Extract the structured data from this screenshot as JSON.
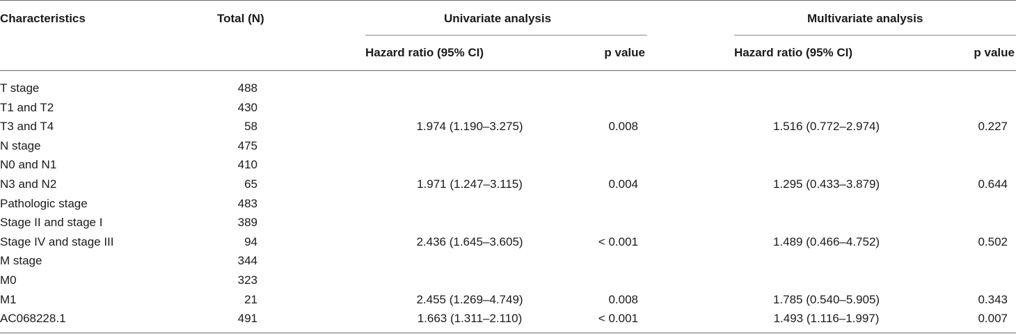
{
  "table": {
    "headers": {
      "characteristics": "Characteristics",
      "total": "Total (N)",
      "univariate": "Univariate analysis",
      "multivariate": "Multivariate analysis",
      "uni_hr": "Hazard ratio (95% CI)",
      "uni_p": "p value",
      "multi_hr": "Hazard ratio (95% CI)",
      "multi_p": "p value"
    },
    "rows": [
      {
        "characteristic": "T stage",
        "total": "488",
        "uni_hr": "",
        "uni_p": "",
        "multi_hr": "",
        "multi_p": ""
      },
      {
        "characteristic": "T1 and T2",
        "total": "430",
        "uni_hr": "",
        "uni_p": "",
        "multi_hr": "",
        "multi_p": ""
      },
      {
        "characteristic": "T3 and T4",
        "total": "58",
        "uni_hr": "1.974 (1.190–3.275)",
        "uni_p": "0.008",
        "multi_hr": "1.516 (0.772–2.974)",
        "multi_p": "0.227"
      },
      {
        "characteristic": "N stage",
        "total": "475",
        "uni_hr": "",
        "uni_p": "",
        "multi_hr": "",
        "multi_p": ""
      },
      {
        "characteristic": "N0 and N1",
        "total": "410",
        "uni_hr": "",
        "uni_p": "",
        "multi_hr": "",
        "multi_p": ""
      },
      {
        "characteristic": "N3 and N2",
        "total": "65",
        "uni_hr": "1.971 (1.247–3.115)",
        "uni_p": "0.004",
        "multi_hr": "1.295 (0.433–3.879)",
        "multi_p": "0.644"
      },
      {
        "characteristic": "Pathologic stage",
        "total": "483",
        "uni_hr": "",
        "uni_p": "",
        "multi_hr": "",
        "multi_p": ""
      },
      {
        "characteristic": "Stage II and stage I",
        "total": "389",
        "uni_hr": "",
        "uni_p": "",
        "multi_hr": "",
        "multi_p": ""
      },
      {
        "characteristic": "Stage IV and stage III",
        "total": "94",
        "uni_hr": "2.436 (1.645–3.605)",
        "uni_p": "< 0.001",
        "multi_hr": "1.489 (0.466–4.752)",
        "multi_p": "0.502"
      },
      {
        "characteristic": "M stage",
        "total": "344",
        "uni_hr": "",
        "uni_p": "",
        "multi_hr": "",
        "multi_p": ""
      },
      {
        "characteristic": "M0",
        "total": "323",
        "uni_hr": "",
        "uni_p": "",
        "multi_hr": "",
        "multi_p": ""
      },
      {
        "characteristic": "M1",
        "total": "21",
        "uni_hr": "2.455 (1.269–4.749)",
        "uni_p": "0.008",
        "multi_hr": "1.785 (0.540–5.905)",
        "multi_p": "0.343"
      },
      {
        "characteristic": "AC068228.1",
        "total": "491",
        "uni_hr": "1.663 (1.311–2.110)",
        "uni_p": "< 0.001",
        "multi_hr": "1.493 (1.116–1.997)",
        "multi_p": "0.007"
      }
    ]
  }
}
